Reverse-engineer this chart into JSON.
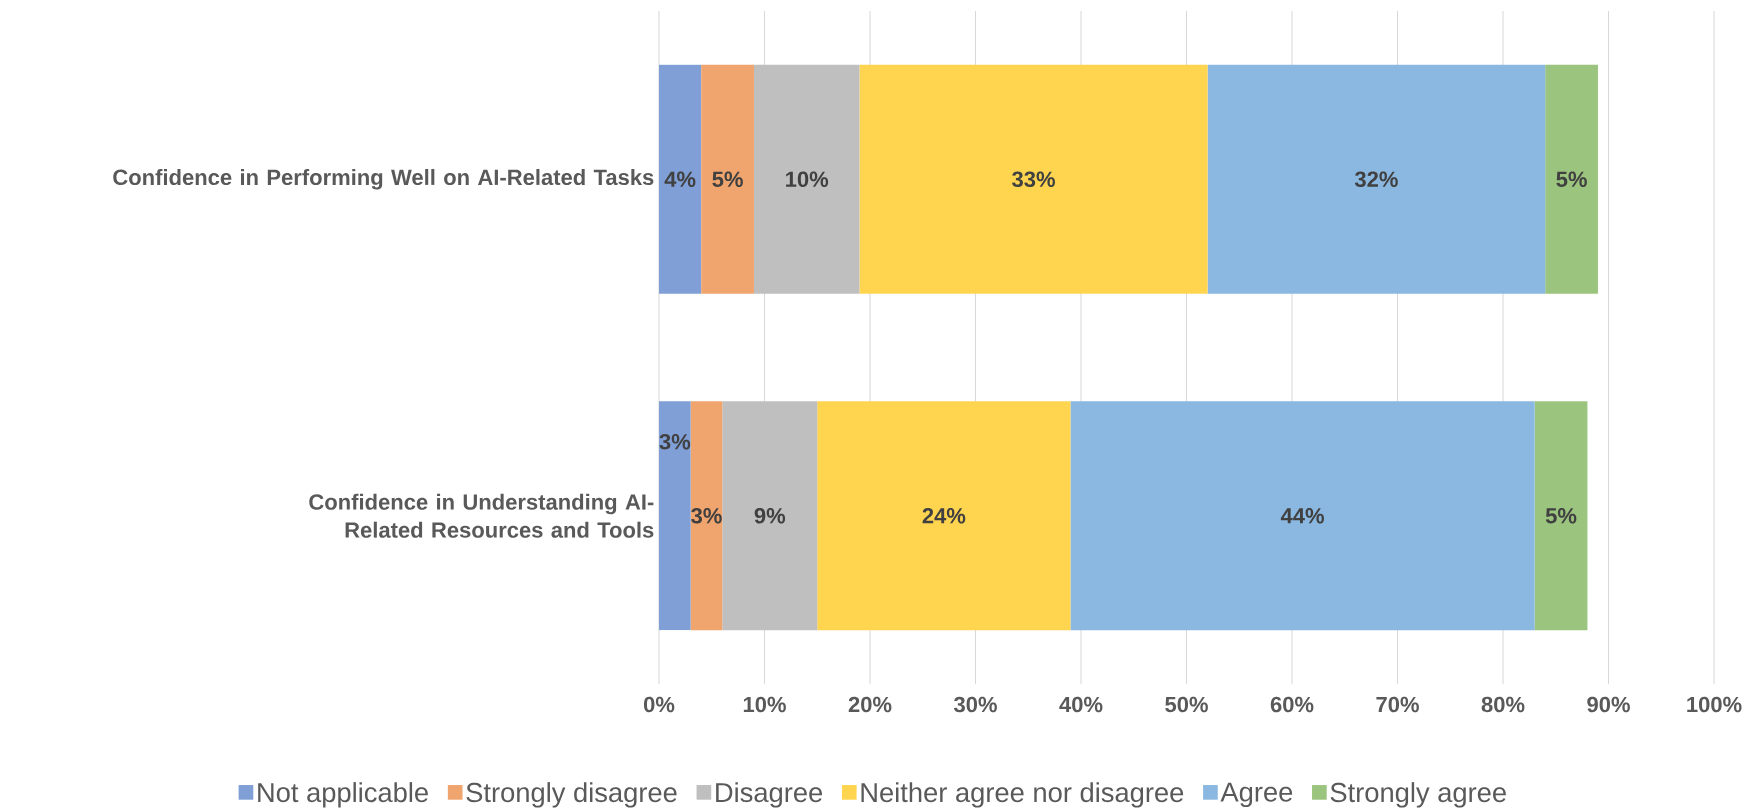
{
  "chart_data": {
    "type": "bar",
    "orientation": "horizontal",
    "stacked": true,
    "categories": [
      "Confidence in Performing Well on AI-Related Tasks",
      "Confidence in Understanding AI-Related Resources and Tools"
    ],
    "series": [
      {
        "name": "Not applicable",
        "color": "#7f9fd6",
        "values": [
          4,
          3
        ],
        "value_labels": [
          "4%",
          "3%"
        ]
      },
      {
        "name": "Strongly disagree",
        "color": "#f0a46e",
        "values": [
          5,
          3
        ],
        "value_labels": [
          "5%",
          "3%"
        ]
      },
      {
        "name": "Disagree",
        "color": "#bfbfbf",
        "values": [
          10,
          9
        ],
        "value_labels": [
          "10%",
          "9%"
        ]
      },
      {
        "name": "Neither agree nor disagree",
        "color": "#ffd44f",
        "values": [
          33,
          24
        ],
        "value_labels": [
          "33%",
          "24%"
        ]
      },
      {
        "name": "Agree",
        "color": "#8bb8e0",
        "values": [
          32,
          44
        ],
        "value_labels": [
          "32%",
          "44%"
        ]
      },
      {
        "name": "Strongly agree",
        "color": "#9bc47f",
        "values": [
          5,
          5
        ],
        "value_labels": [
          "5%",
          "5%"
        ]
      }
    ],
    "xlim": [
      0,
      100
    ],
    "xticks": [
      {
        "value": 0,
        "label": "0%"
      },
      {
        "value": 10,
        "label": "10%"
      },
      {
        "value": 20,
        "label": "20%"
      },
      {
        "value": 30,
        "label": "30%"
      },
      {
        "value": 40,
        "label": "40%"
      },
      {
        "value": 50,
        "label": "50%"
      },
      {
        "value": 60,
        "label": "60%"
      },
      {
        "value": 70,
        "label": "70%"
      },
      {
        "value": 80,
        "label": "80%"
      },
      {
        "value": 90,
        "label": "90%"
      },
      {
        "value": 100,
        "label": "100%"
      }
    ],
    "grid": "x",
    "legend": "bottom"
  }
}
